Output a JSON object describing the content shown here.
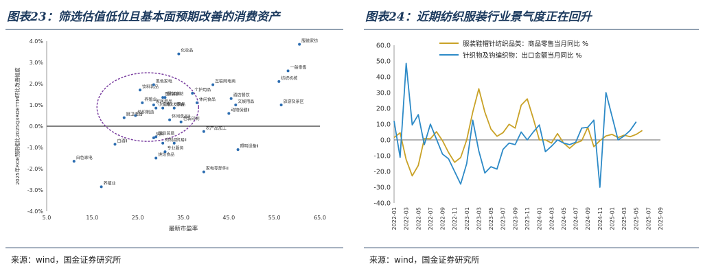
{
  "left": {
    "title": "图表23：筛选估值低位且基本面预期改善的消费资产",
    "source": "来源：wind，国金证券研究所",
    "chart_data": {
      "type": "scatter",
      "xlabel": "最新市盈率",
      "ylabel": "2025年ROE预期相比2025Q3ROETTM环比改善幅度",
      "xlim": [
        5,
        65
      ],
      "ylim": [
        -4,
        4
      ],
      "xticks": [
        "5.0",
        "15.0",
        "25.0",
        "35.0",
        "45.0",
        "55.0",
        "65.0"
      ],
      "yticks": [
        "4.0%",
        "3.0%",
        "2.0%",
        "1.0%",
        "0.0%",
        "-1.0%",
        "-2.0%",
        "-3.0%",
        "-4.0%"
      ],
      "point_color": "#2b6cb0",
      "circle_color": "#7a3ea0",
      "points": [
        {
          "label": "化妆品",
          "x": 34.0,
          "y": 3.4
        },
        {
          "label": "服装家纺",
          "x": 60.5,
          "y": 3.85
        },
        {
          "label": "一般零售",
          "x": 58.0,
          "y": 2.6
        },
        {
          "label": "纺织机械",
          "x": 56.0,
          "y": 2.1
        },
        {
          "label": "互联网电商",
          "x": 41.5,
          "y": 1.95
        },
        {
          "label": "休闲食品",
          "x": 38.0,
          "y": 1.1
        },
        {
          "label": "个护用品",
          "x": 37.0,
          "y": 1.55
        },
        {
          "label": "酒店餐饮",
          "x": 45.5,
          "y": 1.3
        },
        {
          "label": "文娱用品",
          "x": 46.5,
          "y": 1.0
        },
        {
          "label": "旅游及景区",
          "x": 56.5,
          "y": 1.0
        },
        {
          "label": "饮料乳品",
          "x": 25.5,
          "y": 1.7
        },
        {
          "label": "黑色家电",
          "x": 28.5,
          "y": 1.95
        },
        {
          "label": "服装家纺",
          "x": 31.0,
          "y": 1.35
        },
        {
          "label": "医药商业",
          "x": 30.5,
          "y": 1.35
        },
        {
          "label": "养殖业",
          "x": 26.0,
          "y": 1.1
        },
        {
          "label": "家居用品",
          "x": 28.5,
          "y": 1.0
        },
        {
          "label": "小家电",
          "x": 29.0,
          "y": 0.85
        },
        {
          "label": "调味发酵品",
          "x": 30.5,
          "y": 0.85
        },
        {
          "label": "零食",
          "x": 33.0,
          "y": 0.85
        },
        {
          "label": "纺织制造",
          "x": 24.5,
          "y": 0.5
        },
        {
          "label": "厨卫电器",
          "x": 22.0,
          "y": 0.4
        },
        {
          "label": "动物保健Ⅱ",
          "x": 45.0,
          "y": 0.6
        },
        {
          "label": "包装印刷",
          "x": 34.5,
          "y": 0.2
        },
        {
          "label": "白酒Ⅱ",
          "x": 20.0,
          "y": -0.85
        },
        {
          "label": "饲料",
          "x": 28.5,
          "y": -0.55
        },
        {
          "label": "贸易Ⅱ",
          "x": 33.0,
          "y": -0.8
        },
        {
          "label": "肉制品",
          "x": 30.5,
          "y": -0.8
        },
        {
          "label": "农产品加工",
          "x": 39.5,
          "y": -0.25
        },
        {
          "label": "国际贸易",
          "x": 29.0,
          "y": -0.5
        },
        {
          "label": "休闲食品Ⅱ",
          "x": 32.0,
          "y": 0.3
        },
        {
          "label": "烘焙食品",
          "x": 29.0,
          "y": -1.5
        },
        {
          "label": "专业服务",
          "x": 31.0,
          "y": -1.2
        },
        {
          "label": "照明设备Ⅱ",
          "x": 47.0,
          "y": -1.1
        },
        {
          "label": "家电零部件Ⅱ",
          "x": 39.5,
          "y": -2.15
        },
        {
          "label": "白色家电",
          "x": 11.0,
          "y": -1.65
        },
        {
          "label": "养殖业",
          "x": 17.0,
          "y": -2.85
        }
      ]
    }
  },
  "right": {
    "title": "图表24：近期纺织服装行业景气度正在回升",
    "source": "来源：wind，国金证券研究所",
    "chart_data": {
      "type": "line",
      "ylim": [
        -40,
        60
      ],
      "yticks": [
        "60.0",
        "50.0",
        "40.0",
        "30.0",
        "20.0",
        "10.0",
        "0.0",
        "-10.0",
        "-20.0",
        "-30.0",
        "-40.0"
      ],
      "xticks": [
        "2022-01",
        "2022-03",
        "2022-05",
        "2022-07",
        "2022-09",
        "2022-11",
        "2023-01",
        "2023-03",
        "2023-05",
        "2023-07",
        "2023-09",
        "2023-11",
        "2024-01",
        "2024-03",
        "2024-05",
        "2024-07",
        "2024-09",
        "2024-11",
        "2025-01",
        "2025-03",
        "2025-05",
        "2025-07",
        "2025-09"
      ],
      "series": [
        {
          "name": "服装鞋帽针纺织品类：商品零售当月同比 %",
          "color": "#c9a227",
          "values": [
            1.5,
            4.5,
            -12.5,
            -22.8,
            -16.2,
            0.8,
            0.7,
            5.2,
            -0.5,
            -8.0,
            -14.2,
            -11.2,
            0.0,
            17.7,
            32.4,
            17.6,
            6.9,
            2.3,
            4.6,
            9.9,
            7.5,
            22.0,
            26.0,
            13.5,
            0.0,
            0.0,
            -2.0,
            4.0,
            -2.0,
            -5.3,
            -2.0,
            -0.5,
            8.0,
            -4.3,
            -0.5,
            2.5,
            3.5,
            1.5,
            3.0,
            2.0,
            3.5,
            6.0
          ]
        },
        {
          "name": "针织物及钩编织物：出口金额当月同比 %",
          "color": "#2d8ac7",
          "values": [
            12.0,
            -11.0,
            48.5,
            9.5,
            16.0,
            -3.0,
            10.0,
            0.5,
            -9.0,
            -12.0,
            -20.0,
            -28.0,
            -15.0,
            12.5,
            -7.0,
            -21.0,
            -17.0,
            -18.5,
            -6.0,
            -2.0,
            -3.0,
            5.0,
            0.0,
            5.0,
            9.5,
            -7.5,
            -4.0,
            0.0,
            -2.0,
            -3.0,
            -1.5,
            7.5,
            8.0,
            12.5,
            -30.0,
            30.0,
            15.0,
            0.0,
            2.5,
            6.0,
            11.5
          ]
        }
      ]
    }
  }
}
